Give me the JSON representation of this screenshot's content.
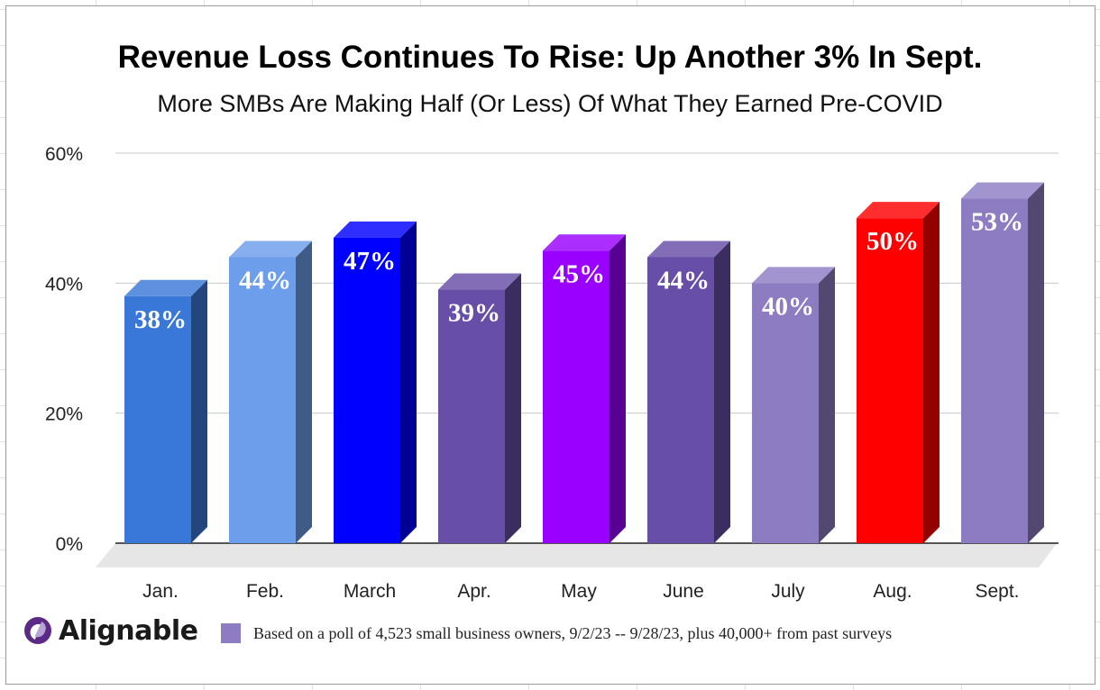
{
  "chart_data": {
    "type": "bar",
    "title": "Revenue Loss Continues To Rise: Up Another 3% In Sept.",
    "subtitle": "More SMBs Are Making Half (Or Less) Of What They Earned Pre-COVID",
    "categories": [
      "Jan.",
      "Feb.",
      "March",
      "Apr.",
      "May",
      "June",
      "July",
      "Aug.",
      "Sept."
    ],
    "values": [
      38,
      44,
      47,
      39,
      45,
      44,
      40,
      50,
      53
    ],
    "data_labels": [
      "38%",
      "44%",
      "47%",
      "39%",
      "45%",
      "44%",
      "40%",
      "50%",
      "53%"
    ],
    "bar_colors": [
      "#3a78d8",
      "#6d9eeb",
      "#0000ff",
      "#674ea7",
      "#9900ff",
      "#674ea7",
      "#8e7cc3",
      "#ff0000",
      "#8e7cc3"
    ],
    "ylim": [
      0,
      60
    ],
    "yticks": [
      0,
      20,
      40,
      60
    ],
    "ytick_labels": [
      "0%",
      "20%",
      "40%",
      "60%"
    ],
    "grid": true,
    "three_d": true
  },
  "legend": {
    "swatch_color": "#8e7cc3",
    "text": "Based on a poll of 4,523 small business owners, 9/2/23 -- 9/28/23, plus 40,000+ from past surveys"
  },
  "brand": {
    "name": "Alignable",
    "icon": "alignable-logo-icon"
  }
}
